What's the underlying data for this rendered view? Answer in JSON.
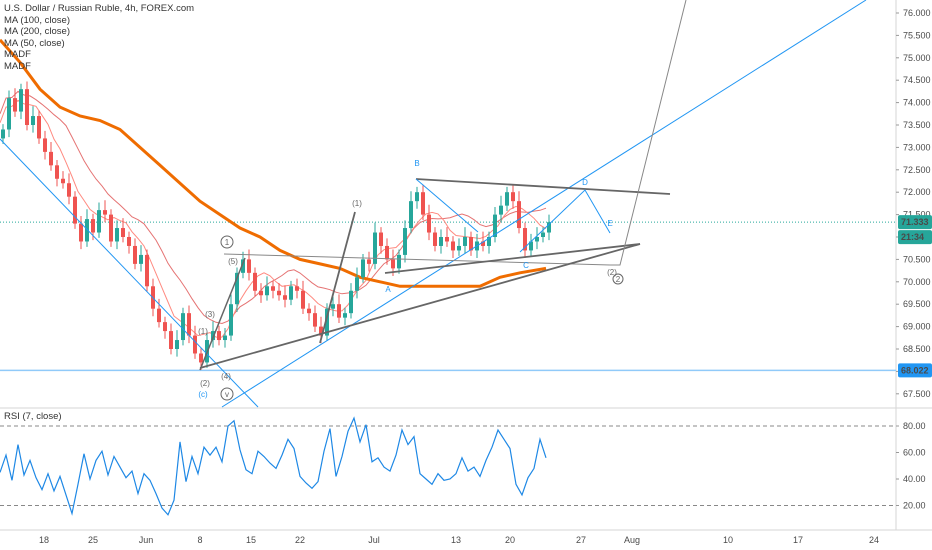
{
  "legend": {
    "title": "U.S. Dollar / Russian Ruble, 4h, FOREX.com",
    "ma100": "MA (100, close)",
    "ma200": "MA (200, close)",
    "ma50": "MA (50, close)",
    "madf1": "MADF",
    "madf2": "MADF"
  },
  "rsi_label": "RSI (7, close)",
  "price_badges": {
    "last_price": "71.333",
    "countdown": "21:34",
    "hline": "68.022"
  },
  "colors": {
    "up": "#26a69a",
    "down": "#ef5350",
    "ma100": "#e57373",
    "ma200": "#ef6c00",
    "ma50": "#ff8a80",
    "wave": "#2196f3",
    "rsi": "#1e88e5",
    "drawing": "#555555"
  },
  "wave_labels": {
    "c_big": "(c)",
    "v_circle": "v",
    "one_circle_left": "1",
    "five_paren": "(5)",
    "three_paren": "(3)",
    "one_paren": "(1)",
    "two_paren": "(2)",
    "four_paren": "(4)",
    "one_paren_jul": "(1)",
    "a_label": "A",
    "b_label": "B",
    "c_label": "C",
    "d_label": "D",
    "e_label": "E",
    "two_paren_right": "(2)",
    "two_circle": "2"
  },
  "chart_data": {
    "type": "candlestick",
    "title": "U.S. Dollar / Russian Ruble, 4h, FOREX.com",
    "y_axis": {
      "ylim": [
        67.3,
        76.3
      ],
      "ticks": [
        "76.000",
        "75.500",
        "75.000",
        "74.500",
        "74.000",
        "73.500",
        "73.000",
        "72.500",
        "72.000",
        "71.500",
        "71.000",
        "70.500",
        "70.000",
        "69.500",
        "69.000",
        "68.500",
        "68.000",
        "67.500"
      ]
    },
    "x_axis": {
      "ticks": [
        "18",
        "25",
        "Jun",
        "8",
        "15",
        "22",
        "Jul",
        "13",
        "20",
        "27",
        "Aug",
        "10",
        "17",
        "24"
      ]
    },
    "close_path": [
      [
        0,
        73.4
      ],
      [
        6,
        74.1
      ],
      [
        12,
        73.8
      ],
      [
        18,
        74.3
      ],
      [
        24,
        73.5
      ],
      [
        30,
        73.7
      ],
      [
        36,
        73.2
      ],
      [
        42,
        72.9
      ],
      [
        48,
        72.6
      ],
      [
        54,
        72.3
      ],
      [
        60,
        72.2
      ],
      [
        66,
        71.9
      ],
      [
        72,
        71.3
      ],
      [
        78,
        70.9
      ],
      [
        84,
        71.4
      ],
      [
        90,
        71.1
      ],
      [
        96,
        71.6
      ],
      [
        102,
        71.5
      ],
      [
        108,
        70.9
      ],
      [
        114,
        71.2
      ],
      [
        120,
        71.0
      ],
      [
        126,
        70.8
      ],
      [
        132,
        70.4
      ],
      [
        138,
        70.6
      ],
      [
        144,
        69.9
      ],
      [
        150,
        69.4
      ],
      [
        156,
        69.1
      ],
      [
        162,
        68.9
      ],
      [
        168,
        68.5
      ],
      [
        174,
        68.7
      ],
      [
        180,
        69.3
      ],
      [
        186,
        68.8
      ],
      [
        192,
        68.4
      ],
      [
        198,
        68.2
      ],
      [
        204,
        68.7
      ],
      [
        210,
        68.9
      ],
      [
        216,
        68.7
      ],
      [
        222,
        68.8
      ],
      [
        228,
        69.5
      ],
      [
        234,
        70.2
      ],
      [
        240,
        70.5
      ],
      [
        246,
        70.2
      ],
      [
        252,
        69.8
      ],
      [
        258,
        69.7
      ],
      [
        264,
        69.9
      ],
      [
        270,
        69.8
      ],
      [
        276,
        69.7
      ],
      [
        282,
        69.6
      ],
      [
        288,
        69.9
      ],
      [
        294,
        69.8
      ],
      [
        300,
        69.4
      ],
      [
        306,
        69.3
      ],
      [
        312,
        69.0
      ],
      [
        318,
        68.8
      ],
      [
        324,
        69.4
      ],
      [
        330,
        69.5
      ],
      [
        336,
        69.2
      ],
      [
        342,
        69.3
      ],
      [
        348,
        69.8
      ],
      [
        354,
        70.1
      ],
      [
        360,
        70.5
      ],
      [
        366,
        70.4
      ],
      [
        372,
        71.1
      ],
      [
        378,
        70.8
      ],
      [
        384,
        70.5
      ],
      [
        390,
        70.3
      ],
      [
        396,
        70.6
      ],
      [
        402,
        71.2
      ],
      [
        408,
        71.8
      ],
      [
        414,
        72.0
      ],
      [
        420,
        71.5
      ],
      [
        426,
        71.1
      ],
      [
        432,
        70.8
      ],
      [
        438,
        71.0
      ],
      [
        444,
        70.9
      ],
      [
        450,
        70.7
      ],
      [
        456,
        70.8
      ],
      [
        462,
        71.0
      ],
      [
        468,
        70.7
      ],
      [
        474,
        70.9
      ],
      [
        480,
        70.8
      ],
      [
        486,
        71.0
      ],
      [
        492,
        71.5
      ],
      [
        498,
        71.7
      ],
      [
        504,
        72.0
      ],
      [
        510,
        71.8
      ],
      [
        516,
        71.2
      ],
      [
        522,
        70.7
      ],
      [
        528,
        70.9
      ],
      [
        534,
        71.0
      ],
      [
        540,
        71.1
      ],
      [
        546,
        71.33
      ]
    ],
    "ma200_path": [
      [
        0,
        75.4
      ],
      [
        20,
        74.9
      ],
      [
        40,
        74.3
      ],
      [
        60,
        73.9
      ],
      [
        80,
        73.7
      ],
      [
        100,
        73.6
      ],
      [
        120,
        73.4
      ],
      [
        140,
        73.0
      ],
      [
        160,
        72.6
      ],
      [
        180,
        72.2
      ],
      [
        200,
        71.8
      ],
      [
        220,
        71.5
      ],
      [
        240,
        71.2
      ],
      [
        260,
        71.0
      ],
      [
        280,
        70.7
      ],
      [
        300,
        70.5
      ],
      [
        320,
        70.4
      ],
      [
        340,
        70.3
      ],
      [
        360,
        70.1
      ],
      [
        380,
        70.0
      ],
      [
        400,
        69.9
      ],
      [
        420,
        69.9
      ],
      [
        440,
        69.9
      ],
      [
        460,
        69.9
      ],
      [
        480,
        69.9
      ],
      [
        500,
        70.1
      ],
      [
        520,
        70.2
      ],
      [
        546,
        70.3
      ]
    ],
    "rsi": {
      "ylim": [
        0,
        100
      ],
      "levels": [
        "80.00",
        "60.00",
        "40.00",
        "20.00"
      ],
      "values": [
        [
          0,
          45
        ],
        [
          6,
          58
        ],
        [
          12,
          39
        ],
        [
          18,
          66
        ],
        [
          24,
          43
        ],
        [
          30,
          54
        ],
        [
          36,
          41
        ],
        [
          42,
          32
        ],
        [
          48,
          44
        ],
        [
          54,
          31
        ],
        [
          60,
          42
        ],
        [
          66,
          28
        ],
        [
          72,
          14
        ],
        [
          78,
          36
        ],
        [
          84,
          59
        ],
        [
          90,
          40
        ],
        [
          96,
          54
        ],
        [
          102,
          61
        ],
        [
          108,
          43
        ],
        [
          114,
          57
        ],
        [
          120,
          49
        ],
        [
          126,
          41
        ],
        [
          132,
          46
        ],
        [
          138,
          29
        ],
        [
          144,
          44
        ],
        [
          150,
          39
        ],
        [
          156,
          29
        ],
        [
          162,
          18
        ],
        [
          168,
          13
        ],
        [
          174,
          24
        ],
        [
          180,
          68
        ],
        [
          186,
          38
        ],
        [
          192,
          57
        ],
        [
          198,
          44
        ],
        [
          204,
          64
        ],
        [
          210,
          58
        ],
        [
          216,
          64
        ],
        [
          222,
          53
        ],
        [
          228,
          80
        ],
        [
          234,
          84
        ],
        [
          240,
          62
        ],
        [
          246,
          47
        ],
        [
          252,
          44
        ],
        [
          258,
          61
        ],
        [
          264,
          57
        ],
        [
          270,
          52
        ],
        [
          276,
          48
        ],
        [
          282,
          58
        ],
        [
          288,
          70
        ],
        [
          294,
          63
        ],
        [
          300,
          42
        ],
        [
          306,
          37
        ],
        [
          312,
          33
        ],
        [
          318,
          38
        ],
        [
          324,
          61
        ],
        [
          330,
          78
        ],
        [
          336,
          42
        ],
        [
          342,
          57
        ],
        [
          348,
          76
        ],
        [
          354,
          86
        ],
        [
          360,
          68
        ],
        [
          366,
          81
        ],
        [
          372,
          53
        ],
        [
          378,
          56
        ],
        [
          384,
          49
        ],
        [
          390,
          46
        ],
        [
          396,
          58
        ],
        [
          402,
          77
        ],
        [
          408,
          66
        ],
        [
          414,
          72
        ],
        [
          420,
          44
        ],
        [
          426,
          40
        ],
        [
          432,
          36
        ],
        [
          438,
          44
        ],
        [
          444,
          39
        ],
        [
          450,
          40
        ],
        [
          456,
          44
        ],
        [
          462,
          56
        ],
        [
          468,
          46
        ],
        [
          474,
          49
        ],
        [
          480,
          42
        ],
        [
          486,
          54
        ],
        [
          492,
          64
        ],
        [
          498,
          77
        ],
        [
          504,
          70
        ],
        [
          510,
          63
        ],
        [
          516,
          36
        ],
        [
          522,
          28
        ],
        [
          528,
          41
        ],
        [
          534,
          48
        ],
        [
          540,
          70
        ],
        [
          546,
          56
        ]
      ]
    }
  }
}
